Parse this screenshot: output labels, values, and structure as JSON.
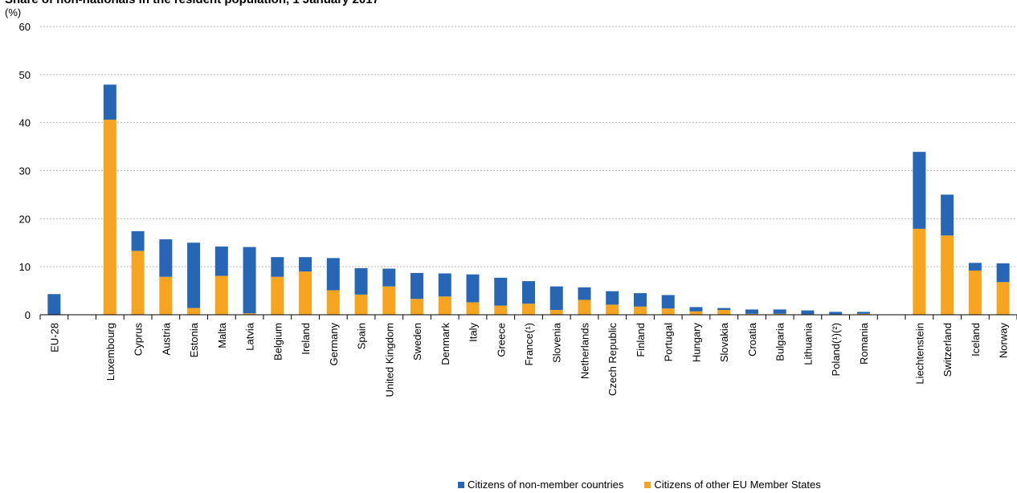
{
  "chart_data": {
    "type": "bar",
    "stacked": true,
    "title": "Share of non-nationals in the resident population, 1 January 2017",
    "unit_label": "(%)",
    "ylim": [
      0,
      60
    ],
    "yticks": [
      0,
      10,
      20,
      30,
      40,
      50,
      60
    ],
    "grid": "horizontal dashed",
    "legend_position": "bottom-right",
    "categories": [
      "EU-28",
      "",
      "Luxembourg",
      "Cyprus",
      "Austria",
      "Estonia",
      "Malta",
      "Latvia",
      "Belgium",
      "Ireland",
      "Germany",
      "Spain",
      "United Kingdom",
      "Sweden",
      "Denmark",
      "Italy",
      "Greece",
      "France(¹)",
      "Slovenia",
      "Netherlands",
      "Czech Republic",
      "Finland",
      "Portugal",
      "Hungary",
      "Slovakia",
      "Croatia",
      "Bulgaria",
      "Lithuania",
      "Poland(¹)(²)",
      "Romania",
      "",
      "Liechtenstein",
      "Switzerland",
      "Iceland",
      "Norway"
    ],
    "series": [
      {
        "name": "Citizens of other EU Member States",
        "color": "#f7a421",
        "values": [
          0,
          null,
          40.6,
          13.3,
          7.9,
          1.4,
          8.1,
          0.3,
          7.9,
          9.0,
          5.1,
          4.2,
          5.9,
          3.3,
          3.8,
          2.6,
          1.9,
          2.3,
          1.0,
          3.1,
          2.1,
          1.7,
          1.3,
          0.7,
          1.0,
          0.2,
          0.2,
          0.1,
          0.1,
          0.2,
          null,
          17.9,
          16.5,
          9.2,
          6.8
        ]
      },
      {
        "name": "Citizens of non-member countries",
        "color": "#2766b5",
        "values": [
          4.3,
          null,
          7.3,
          4.1,
          7.8,
          13.6,
          6.1,
          13.8,
          4.1,
          3.0,
          6.7,
          5.5,
          3.7,
          5.4,
          4.8,
          5.8,
          5.8,
          4.7,
          4.9,
          2.6,
          2.8,
          2.8,
          2.8,
          0.9,
          0.4,
          0.9,
          0.9,
          0.8,
          0.5,
          0.4,
          null,
          16.0,
          8.5,
          1.6,
          3.9
        ]
      }
    ]
  }
}
